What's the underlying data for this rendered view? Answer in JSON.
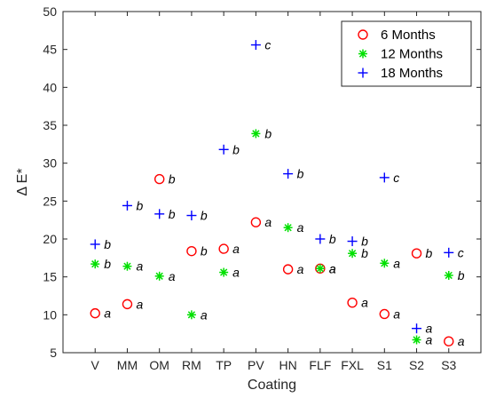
{
  "chart_data": {
    "type": "scatter",
    "xlabel": "Coating",
    "ylabel": "Δ E*",
    "ylim": [
      5,
      50
    ],
    "yticks": [
      5,
      10,
      15,
      20,
      25,
      30,
      35,
      40,
      45,
      50
    ],
    "categories": [
      "V",
      "MM",
      "OM",
      "RM",
      "TP",
      "PV",
      "HN",
      "FLF",
      "FXL",
      "S1",
      "S2",
      "S3"
    ],
    "legend_position": "top-right",
    "series": [
      {
        "name": "6 Months",
        "marker": "circle",
        "color": "#ff0000",
        "values": [
          10.2,
          11.4,
          27.9,
          18.4,
          18.7,
          22.2,
          16.0,
          16.1,
          11.6,
          10.1,
          18.1,
          6.5
        ],
        "labels": [
          "a",
          "a",
          "b",
          "b",
          "a",
          "a",
          "a",
          "a",
          "a",
          "a",
          "b",
          "a"
        ]
      },
      {
        "name": "12 Months",
        "marker": "asterisk",
        "color": "#00e000",
        "values": [
          16.7,
          16.4,
          15.1,
          10.0,
          15.6,
          33.9,
          21.5,
          16.1,
          18.1,
          16.8,
          6.7,
          15.2
        ],
        "labels": [
          "b",
          "a",
          "a",
          "a",
          "a",
          "b",
          "a",
          "a",
          "b",
          "a",
          "a",
          "b"
        ]
      },
      {
        "name": "18 Months",
        "marker": "plus",
        "color": "#0000ff",
        "values": [
          19.3,
          24.4,
          23.3,
          23.1,
          31.8,
          45.6,
          28.6,
          20.0,
          19.7,
          28.1,
          8.2,
          18.2
        ],
        "labels": [
          "b",
          "b",
          "b",
          "b",
          "b",
          "c",
          "b",
          "b",
          "b",
          "c",
          "a",
          "c"
        ]
      }
    ]
  }
}
